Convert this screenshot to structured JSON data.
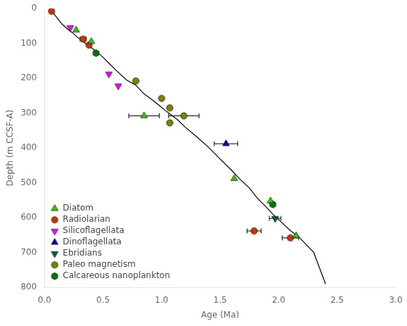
{
  "chart_data": {
    "type": "scatter",
    "xlabel": "Age (Ma)",
    "ylabel": "Depth (m CCSF-A)",
    "xlim": [
      0.0,
      3.0
    ],
    "ylim": [
      800,
      0
    ],
    "xticks": [
      {
        "value": 0.0,
        "label": "0.0"
      },
      {
        "value": 0.5,
        "label": "0.5"
      },
      {
        "value": 1.0,
        "label": "1.0"
      },
      {
        "value": 1.5,
        "label": "1.5"
      },
      {
        "value": 2.0,
        "label": "2.0"
      },
      {
        "value": 2.5,
        "label": "2.5"
      },
      {
        "value": 3.0,
        "label": "3.0"
      }
    ],
    "yticks": [
      0,
      100,
      200,
      300,
      400,
      500,
      600,
      700,
      800
    ],
    "grid": false,
    "legend": "lower left",
    "series": [
      {
        "type": "line",
        "color": "#000000",
        "line_style": "solid",
        "x": [
          0.05,
          0.15,
          0.2,
          0.24,
          0.28,
          0.33,
          0.37,
          0.41,
          0.46,
          0.5,
          0.55,
          0.62,
          0.7,
          0.78,
          0.85,
          0.92,
          0.98,
          1.03,
          1.08,
          1.14,
          1.2,
          1.3,
          1.4,
          1.5,
          1.6,
          1.67,
          1.75,
          1.82,
          1.89,
          1.95,
          2.02,
          2.1,
          2.18,
          2.3,
          2.4
        ],
        "values": [
          3,
          45,
          60,
          70,
          82,
          95,
          105,
          115,
          128,
          140,
          157,
          180,
          205,
          220,
          245,
          262,
          278,
          292,
          305,
          320,
          340,
          368,
          398,
          432,
          465,
          490,
          515,
          545,
          568,
          590,
          612,
          637,
          658,
          700,
          790
        ]
      },
      {
        "name": "Diatom",
        "type": "scatter",
        "color": "#33cc00",
        "marker": "triangle",
        "x": [
          0.27,
          0.4,
          0.85,
          1.62,
          1.93,
          2.15
        ],
        "values": [
          62,
          95,
          308,
          488,
          552,
          652
        ],
        "xerr": [
          0.0,
          0.0,
          0.13,
          0.0,
          0.0,
          0.0
        ]
      },
      {
        "name": "Radiolarian",
        "type": "scatter",
        "color": "#cc3300",
        "marker": "circle",
        "x": [
          0.06,
          0.33,
          0.38,
          1.79,
          2.1
        ],
        "values": [
          8,
          88,
          105,
          638,
          658
        ],
        "xerr": [
          0.0,
          0.025,
          0.0,
          0.06,
          0.07
        ]
      },
      {
        "name": "Silicoflagellata",
        "type": "scatter",
        "color": "#ff00ff",
        "marker": "triangle_down",
        "x": [
          0.22,
          0.55,
          0.63
        ],
        "values": [
          55,
          188,
          222
        ],
        "xerr": [
          0.0,
          0.0,
          0.0
        ]
      },
      {
        "name": "Dinoflagellata",
        "type": "scatter",
        "color": "#0000cc",
        "marker": "triangle",
        "x": [
          1.55
        ],
        "values": [
          388
        ],
        "xerr": [
          0.1
        ]
      },
      {
        "name": "Ebridians",
        "type": "scatter",
        "color": "#006633",
        "marker": "triangle_down",
        "x": [
          1.97
        ],
        "values": [
          602
        ],
        "xerr": [
          0.05
        ]
      },
      {
        "name": "Paleo magnetism",
        "type": "scatter",
        "color": "#808000",
        "marker": "circle",
        "x": [
          0.78,
          1.0,
          1.07,
          1.19,
          1.07
        ],
        "values": [
          208,
          258,
          285,
          308,
          328
        ],
        "xerr": [
          0.0,
          0.0,
          0.0,
          0.13,
          0.0
        ]
      },
      {
        "name": "Calcareous nanoplankton",
        "type": "scatter",
        "color": "#007700",
        "marker": "hexagon",
        "x": [
          0.44,
          1.95
        ],
        "values": [
          128,
          562
        ],
        "xerr": [
          0.0,
          0.0
        ]
      }
    ]
  }
}
